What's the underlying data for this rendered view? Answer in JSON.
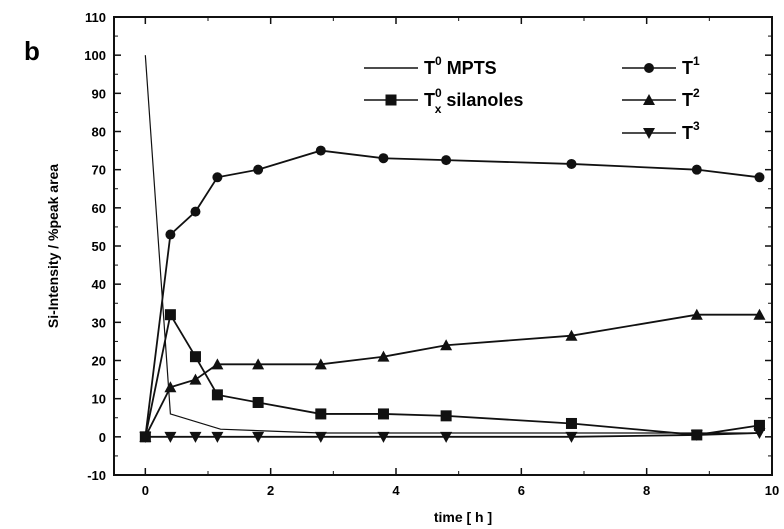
{
  "panel_label": "b",
  "chart_data": {
    "type": "line",
    "xlabel": "time [ h ]",
    "ylabel": "Si-Intensity / %peak area",
    "xlim": [
      -0.5,
      10
    ],
    "ylim": [
      -10,
      110
    ],
    "xticks": [
      0,
      2,
      4,
      6,
      8,
      10
    ],
    "yticks": [
      -10,
      0,
      10,
      20,
      30,
      40,
      50,
      60,
      70,
      80,
      90,
      100,
      110
    ],
    "grid": false,
    "legend_position": "top-right",
    "series": [
      {
        "name": "T0 MPTS",
        "legend": {
          "base": "T",
          "sup": "0",
          "sub": "",
          "suffix": " MPTS"
        },
        "marker": "none",
        "dash": "solid",
        "x": [
          0,
          0.4,
          1.2,
          2.8,
          9.8
        ],
        "y": [
          100,
          6,
          2,
          1,
          1
        ]
      },
      {
        "name": "T0x silanoles",
        "legend": {
          "base": "T",
          "sup": "0",
          "sub": "x",
          "suffix": " silanoles"
        },
        "marker": "square",
        "dash": "solid",
        "x": [
          0,
          0.4,
          0.8,
          1.15,
          1.8,
          2.8,
          3.8,
          4.8,
          6.8,
          8.8,
          9.8
        ],
        "y": [
          0,
          32,
          21,
          11,
          9,
          6,
          6,
          5.5,
          3.5,
          0.5,
          3
        ]
      },
      {
        "name": "T1",
        "legend": {
          "base": "T",
          "sup": "1",
          "sub": "",
          "suffix": ""
        },
        "marker": "circle",
        "dash": "solid",
        "x": [
          0,
          0.4,
          0.8,
          1.15,
          1.8,
          2.8,
          3.8,
          4.8,
          6.8,
          8.8,
          9.8
        ],
        "y": [
          0,
          53,
          59,
          68,
          70,
          75,
          73,
          72.5,
          71.5,
          70,
          68
        ]
      },
      {
        "name": "T2",
        "legend": {
          "base": "T",
          "sup": "2",
          "sub": "",
          "suffix": ""
        },
        "marker": "triangle-up",
        "dash": "solid",
        "x": [
          0,
          0.4,
          0.8,
          1.15,
          1.8,
          2.8,
          3.8,
          4.8,
          6.8,
          8.8,
          9.8
        ],
        "y": [
          0,
          13,
          15,
          19,
          19,
          19,
          21,
          24,
          26.5,
          32,
          32
        ]
      },
      {
        "name": "T3",
        "legend": {
          "base": "T",
          "sup": "3",
          "sub": "",
          "suffix": ""
        },
        "marker": "triangle-down",
        "dash": "solid",
        "x": [
          0,
          0.4,
          0.8,
          1.15,
          1.8,
          2.8,
          3.8,
          4.8,
          6.8,
          8.8,
          9.8
        ],
        "y": [
          0,
          0,
          0,
          0,
          0,
          0,
          0,
          0,
          0,
          0.5,
          1
        ]
      }
    ]
  }
}
